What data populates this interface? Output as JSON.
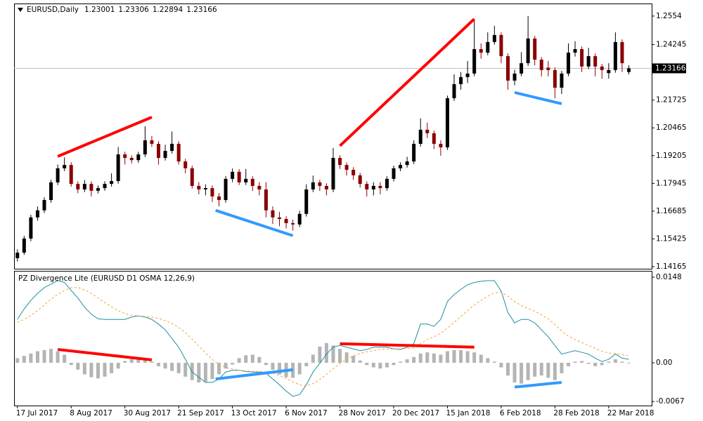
{
  "chart_data": [
    {
      "type": "candlestick",
      "title": "EURUSD,Daily",
      "header_ohlc": [
        1.23001,
        1.23306,
        1.22894,
        1.23166
      ],
      "current_price": 1.23166,
      "up_color": "#000000",
      "down_color": "#8b0000",
      "price_line_color": "#c0c0c0",
      "xlim": [
        -0.5,
        94.4
      ],
      "ylim": [
        1.1407,
        1.2611
      ],
      "yticks": [
        1.14165,
        1.15425,
        1.16685,
        1.17945,
        1.19205,
        1.20465,
        1.21725,
        1.24245,
        1.2554
      ],
      "open": [
        1.1455,
        1.148,
        1.1544,
        1.164,
        1.1672,
        1.1719,
        1.1799,
        1.1863,
        1.1878,
        1.1792,
        1.1767,
        1.1792,
        1.1761,
        1.1773,
        1.1792,
        1.1805,
        1.1926,
        1.191,
        1.19,
        1.1926,
        1.199,
        1.1974,
        1.191,
        1.1942,
        1.1974,
        1.1894,
        1.1863,
        1.1783,
        1.1767,
        1.1773,
        1.1735,
        1.1719,
        1.1815,
        1.1847,
        1.1799,
        1.1815,
        1.1783,
        1.1767,
        1.1672,
        1.164,
        1.1633,
        1.1614,
        1.1608,
        1.1656,
        1.1767,
        1.1799,
        1.1783,
        1.1767,
        1.191,
        1.1878,
        1.1856,
        1.1831,
        1.1792,
        1.1767,
        1.1783,
        1.1773,
        1.1815,
        1.1863,
        1.1878,
        1.1894,
        1.1974,
        1.2038,
        1.2022,
        1.1974,
        1.1958,
        1.2181,
        1.2245,
        1.2277,
        1.2293,
        1.2404,
        1.2388,
        1.2436,
        1.2468,
        1.2372,
        1.2261,
        1.2293,
        1.234,
        1.2452,
        1.2356,
        1.232,
        1.2309,
        1.2229,
        1.2293,
        1.2388,
        1.2404,
        1.2325,
        1.2372,
        1.2325,
        1.2295,
        1.2309,
        1.2436,
        1.23001
      ],
      "high": [
        1.1495,
        1.1556,
        1.1652,
        1.169,
        1.1731,
        1.1811,
        1.188,
        1.1912,
        1.189,
        1.1804,
        1.181,
        1.1804,
        1.1785,
        1.1804,
        1.184,
        1.196,
        1.1938,
        1.1922,
        1.1938,
        1.2054,
        1.201,
        1.1986,
        1.197,
        1.203,
        1.1986,
        1.1906,
        1.1875,
        1.18,
        1.179,
        1.1785,
        1.175,
        1.1827,
        1.1862,
        1.1859,
        1.186,
        1.1827,
        1.18,
        1.18,
        1.169,
        1.1665,
        1.1645,
        1.163,
        1.167,
        1.179,
        1.183,
        1.1811,
        1.1795,
        1.1955,
        1.1922,
        1.189,
        1.1868,
        1.1843,
        1.1804,
        1.18,
        1.18,
        1.1827,
        1.1875,
        1.189,
        1.1915,
        1.199,
        1.209,
        1.207,
        1.2034,
        1.199,
        1.2193,
        1.229,
        1.23,
        1.235,
        1.2536,
        1.243,
        1.248,
        1.251,
        1.248,
        1.2384,
        1.231,
        1.239,
        1.2554,
        1.2464,
        1.2368,
        1.235,
        1.2321,
        1.2305,
        1.243,
        1.244,
        1.2416,
        1.241,
        1.2384,
        1.2337,
        1.234,
        1.248,
        1.2448,
        1.23306
      ],
      "low": [
        1.144,
        1.147,
        1.1532,
        1.1625,
        1.166,
        1.1707,
        1.1787,
        1.185,
        1.178,
        1.175,
        1.1755,
        1.1735,
        1.1749,
        1.1761,
        1.178,
        1.1793,
        1.188,
        1.1885,
        1.1888,
        1.1914,
        1.196,
        1.188,
        1.1898,
        1.193,
        1.188,
        1.184,
        1.1771,
        1.1745,
        1.174,
        1.171,
        1.169,
        1.1707,
        1.18,
        1.1787,
        1.1787,
        1.176,
        1.174,
        1.164,
        1.161,
        1.16,
        1.159,
        1.158,
        1.1596,
        1.1644,
        1.1755,
        1.176,
        1.174,
        1.1755,
        1.186,
        1.183,
        1.181,
        1.1775,
        1.1735,
        1.174,
        1.1745,
        1.1761,
        1.1803,
        1.185,
        1.1866,
        1.1882,
        1.1962,
        1.2,
        1.195,
        1.192,
        1.1946,
        1.2169,
        1.222,
        1.225,
        1.2281,
        1.236,
        1.2376,
        1.2424,
        1.234,
        1.222,
        1.224,
        1.2281,
        1.2328,
        1.233,
        1.228,
        1.228,
        1.218,
        1.22,
        1.2281,
        1.237,
        1.23,
        1.2313,
        1.228,
        1.227,
        1.227,
        1.2297,
        1.23,
        1.22894
      ],
      "close": [
        1.148,
        1.1544,
        1.164,
        1.1672,
        1.1719,
        1.1799,
        1.1863,
        1.1878,
        1.1792,
        1.1767,
        1.1792,
        1.1761,
        1.1773,
        1.1792,
        1.1805,
        1.1926,
        1.191,
        1.19,
        1.1926,
        1.199,
        1.1974,
        1.191,
        1.1942,
        1.1974,
        1.1894,
        1.1863,
        1.1783,
        1.1767,
        1.1773,
        1.1735,
        1.1719,
        1.1815,
        1.1847,
        1.1799,
        1.1815,
        1.1783,
        1.1767,
        1.1672,
        1.164,
        1.1633,
        1.1614,
        1.1608,
        1.1656,
        1.1767,
        1.1799,
        1.1783,
        1.1767,
        1.191,
        1.1878,
        1.1856,
        1.1831,
        1.1792,
        1.1767,
        1.1783,
        1.1773,
        1.1815,
        1.1863,
        1.1878,
        1.1894,
        1.1974,
        1.2038,
        1.2022,
        1.1974,
        1.1958,
        1.2181,
        1.2245,
        1.2277,
        1.2293,
        1.2404,
        1.2388,
        1.2436,
        1.2468,
        1.2372,
        1.2261,
        1.2293,
        1.234,
        1.2452,
        1.2356,
        1.2309,
        1.2309,
        1.2229,
        1.2293,
        1.2388,
        1.2404,
        1.2325,
        1.2372,
        1.2325,
        1.2309,
        1.2309,
        1.2436,
        1.234,
        1.23166
      ],
      "divergences": [
        {
          "color": "#ff0000",
          "x": [
            6,
            20
          ],
          "y": [
            1.1917,
            1.2095
          ]
        },
        {
          "color": "#ff0000",
          "x": [
            48,
            68
          ],
          "y": [
            1.1965,
            1.2541
          ]
        },
        {
          "color": "#3399ff",
          "x": [
            29.5,
            41
          ],
          "y": [
            1.1672,
            1.1557
          ]
        },
        {
          "color": "#3399ff",
          "x": [
            74,
            81
          ],
          "y": [
            1.2207,
            1.2156
          ]
        }
      ]
    },
    {
      "type": "oscillator",
      "title": "PZ Divergence Lite (EURUSD D1 OSMA 12,26,9)",
      "xlim": [
        -0.5,
        94.4
      ],
      "ylim": [
        -0.0074,
        0.0159
      ],
      "yticks": [
        {
          "value": -0.0067,
          "label": "-0.0067"
        },
        {
          "value": 0,
          "label": "0.00"
        },
        {
          "value": 0.0148,
          "label": "0.0148"
        }
      ],
      "xticks": [
        {
          "value": 0,
          "label": "17 Jul 2017"
        },
        {
          "value": 8,
          "label": "8 Aug 2017"
        },
        {
          "value": 16,
          "label": "30 Aug 2017"
        },
        {
          "value": 24,
          "label": "21 Sep 2017"
        },
        {
          "value": 32,
          "label": "13 Oct 2017"
        },
        {
          "value": 40,
          "label": "6 Nov 2017"
        },
        {
          "value": 48,
          "label": "28 Nov 2017"
        },
        {
          "value": 56,
          "label": "20 Dec 2017"
        },
        {
          "value": 64,
          "label": "15 Jan 2018"
        },
        {
          "value": 72,
          "label": "6 Feb 2018"
        },
        {
          "value": 80,
          "label": "28 Feb 2018"
        },
        {
          "value": 88,
          "label": "22 Mar 2018"
        }
      ],
      "histogram": {
        "color": "#b4b4b4",
        "values": [
          0.0008,
          0.0012,
          0.0016,
          0.002,
          0.0022,
          0.0024,
          0.002,
          0.0014,
          -0.0004,
          -0.0012,
          -0.002,
          -0.0025,
          -0.0027,
          -0.0024,
          -0.0018,
          -0.001,
          0.0003,
          0.0006,
          0.0008,
          0.0006,
          0.0002,
          -0.0006,
          -0.001,
          -0.0014,
          -0.0018,
          -0.0024,
          -0.003,
          -0.0034,
          -0.0033,
          -0.0028,
          -0.002,
          -0.001,
          -0.0003,
          0.0008,
          0.0013,
          0.0014,
          0.001,
          -0.0004,
          -0.0012,
          -0.002,
          -0.0025,
          -0.0026,
          -0.002,
          -0.0006,
          0.0014,
          0.0028,
          0.0034,
          0.003,
          0.0024,
          0.0018,
          0.0012,
          0.0004,
          -0.0004,
          -0.0008,
          -0.001,
          -0.0008,
          -0.0004,
          0.0002,
          0.0006,
          0.001,
          0.0016,
          0.0018,
          0.0016,
          0.0014,
          0.002,
          0.0022,
          0.0022,
          0.002,
          0.0018,
          0.0014,
          0.0008,
          0.0002,
          -0.0008,
          -0.0022,
          -0.0034,
          -0.0036,
          -0.003,
          -0.0024,
          -0.0022,
          -0.0026,
          -0.003,
          -0.0018,
          -0.0006,
          0.0002,
          0.0003,
          -0.0002,
          -0.0006,
          -0.0004,
          0.0002,
          0.0006,
          0.0002,
          -0.0001
        ]
      },
      "macd": {
        "color": "#1f8fa0",
        "values": [
          0.0075,
          0.0093,
          0.0108,
          0.012,
          0.013,
          0.0136,
          0.0142,
          0.0139,
          0.0125,
          0.0112,
          0.0096,
          0.0084,
          0.0076,
          0.0075,
          0.0075,
          0.0075,
          0.0075,
          0.0079,
          0.0081,
          0.0079,
          0.0075,
          0.0067,
          0.0057,
          0.0042,
          0.0027,
          0.0006,
          -0.0016,
          -0.0025,
          -0.0034,
          -0.0034,
          -0.0028,
          -0.0016,
          -0.0013,
          -0.0013,
          -0.0015,
          -0.0016,
          -0.0016,
          -0.0018,
          -0.0028,
          -0.0038,
          -0.0049,
          -0.0058,
          -0.0055,
          -0.0038,
          -0.0016,
          -0.0001,
          0.0015,
          0.0027,
          0.003,
          0.0027,
          0.0024,
          0.0021,
          0.0023,
          0.0027,
          0.0027,
          0.0027,
          0.0024,
          0.0023,
          0.0027,
          0.0033,
          0.0067,
          0.0067,
          0.0063,
          0.0075,
          0.0106,
          0.0118,
          0.0127,
          0.0135,
          0.0139,
          0.0141,
          0.0142,
          0.0142,
          0.0124,
          0.0087,
          0.0069,
          0.0075,
          0.0075,
          0.0069,
          0.0057,
          0.0045,
          0.003,
          0.0015,
          0.0018,
          0.0021,
          0.0018,
          0.0015,
          0.0008,
          0.0002,
          0.0006,
          0.0015,
          0.0008,
          0.0006
        ]
      },
      "signal": {
        "color": "#f5a030",
        "values": [
          0.007,
          0.0075,
          0.0082,
          0.009,
          0.01,
          0.011,
          0.0118,
          0.0125,
          0.013,
          0.013,
          0.0126,
          0.012,
          0.0112,
          0.0104,
          0.0097,
          0.009,
          0.0085,
          0.0082,
          0.0081,
          0.008,
          0.0079,
          0.0077,
          0.0073,
          0.0068,
          0.0061,
          0.0052,
          0.0041,
          0.0029,
          0.0017,
          0.0006,
          -0.0003,
          -0.0008,
          -0.0011,
          -0.0013,
          -0.0014,
          -0.0015,
          -0.0015,
          -0.0016,
          -0.0018,
          -0.0022,
          -0.0027,
          -0.0033,
          -0.0038,
          -0.004,
          -0.0036,
          -0.0029,
          -0.002,
          -0.001,
          -0.0001,
          0.0006,
          0.0012,
          0.0016,
          0.0019,
          0.0021,
          0.0023,
          0.0024,
          0.0024,
          0.0024,
          0.0025,
          0.0026,
          0.0033,
          0.004,
          0.0045,
          0.0051,
          0.006,
          0.007,
          0.008,
          0.009,
          0.01,
          0.0108,
          0.0115,
          0.0121,
          0.0122,
          0.0115,
          0.0106,
          0.0099,
          0.0094,
          0.0089,
          0.0083,
          0.0076,
          0.0066,
          0.0055,
          0.0046,
          0.004,
          0.0035,
          0.003,
          0.0025,
          0.002,
          0.0017,
          0.0016,
          0.0014,
          0.0012
        ]
      },
      "divergences": [
        {
          "color": "#ff0000",
          "x": [
            6,
            20
          ],
          "y": [
            0.0023,
            0.0005
          ]
        },
        {
          "color": "#ff0000",
          "x": [
            48,
            68
          ],
          "y": [
            0.0033,
            0.0027
          ]
        },
        {
          "color": "#3399ff",
          "x": [
            29.5,
            41
          ],
          "y": [
            -0.0028,
            -0.0012
          ]
        },
        {
          "color": "#3399ff",
          "x": [
            74,
            81
          ],
          "y": [
            -0.0042,
            -0.0034
          ]
        }
      ]
    }
  ]
}
